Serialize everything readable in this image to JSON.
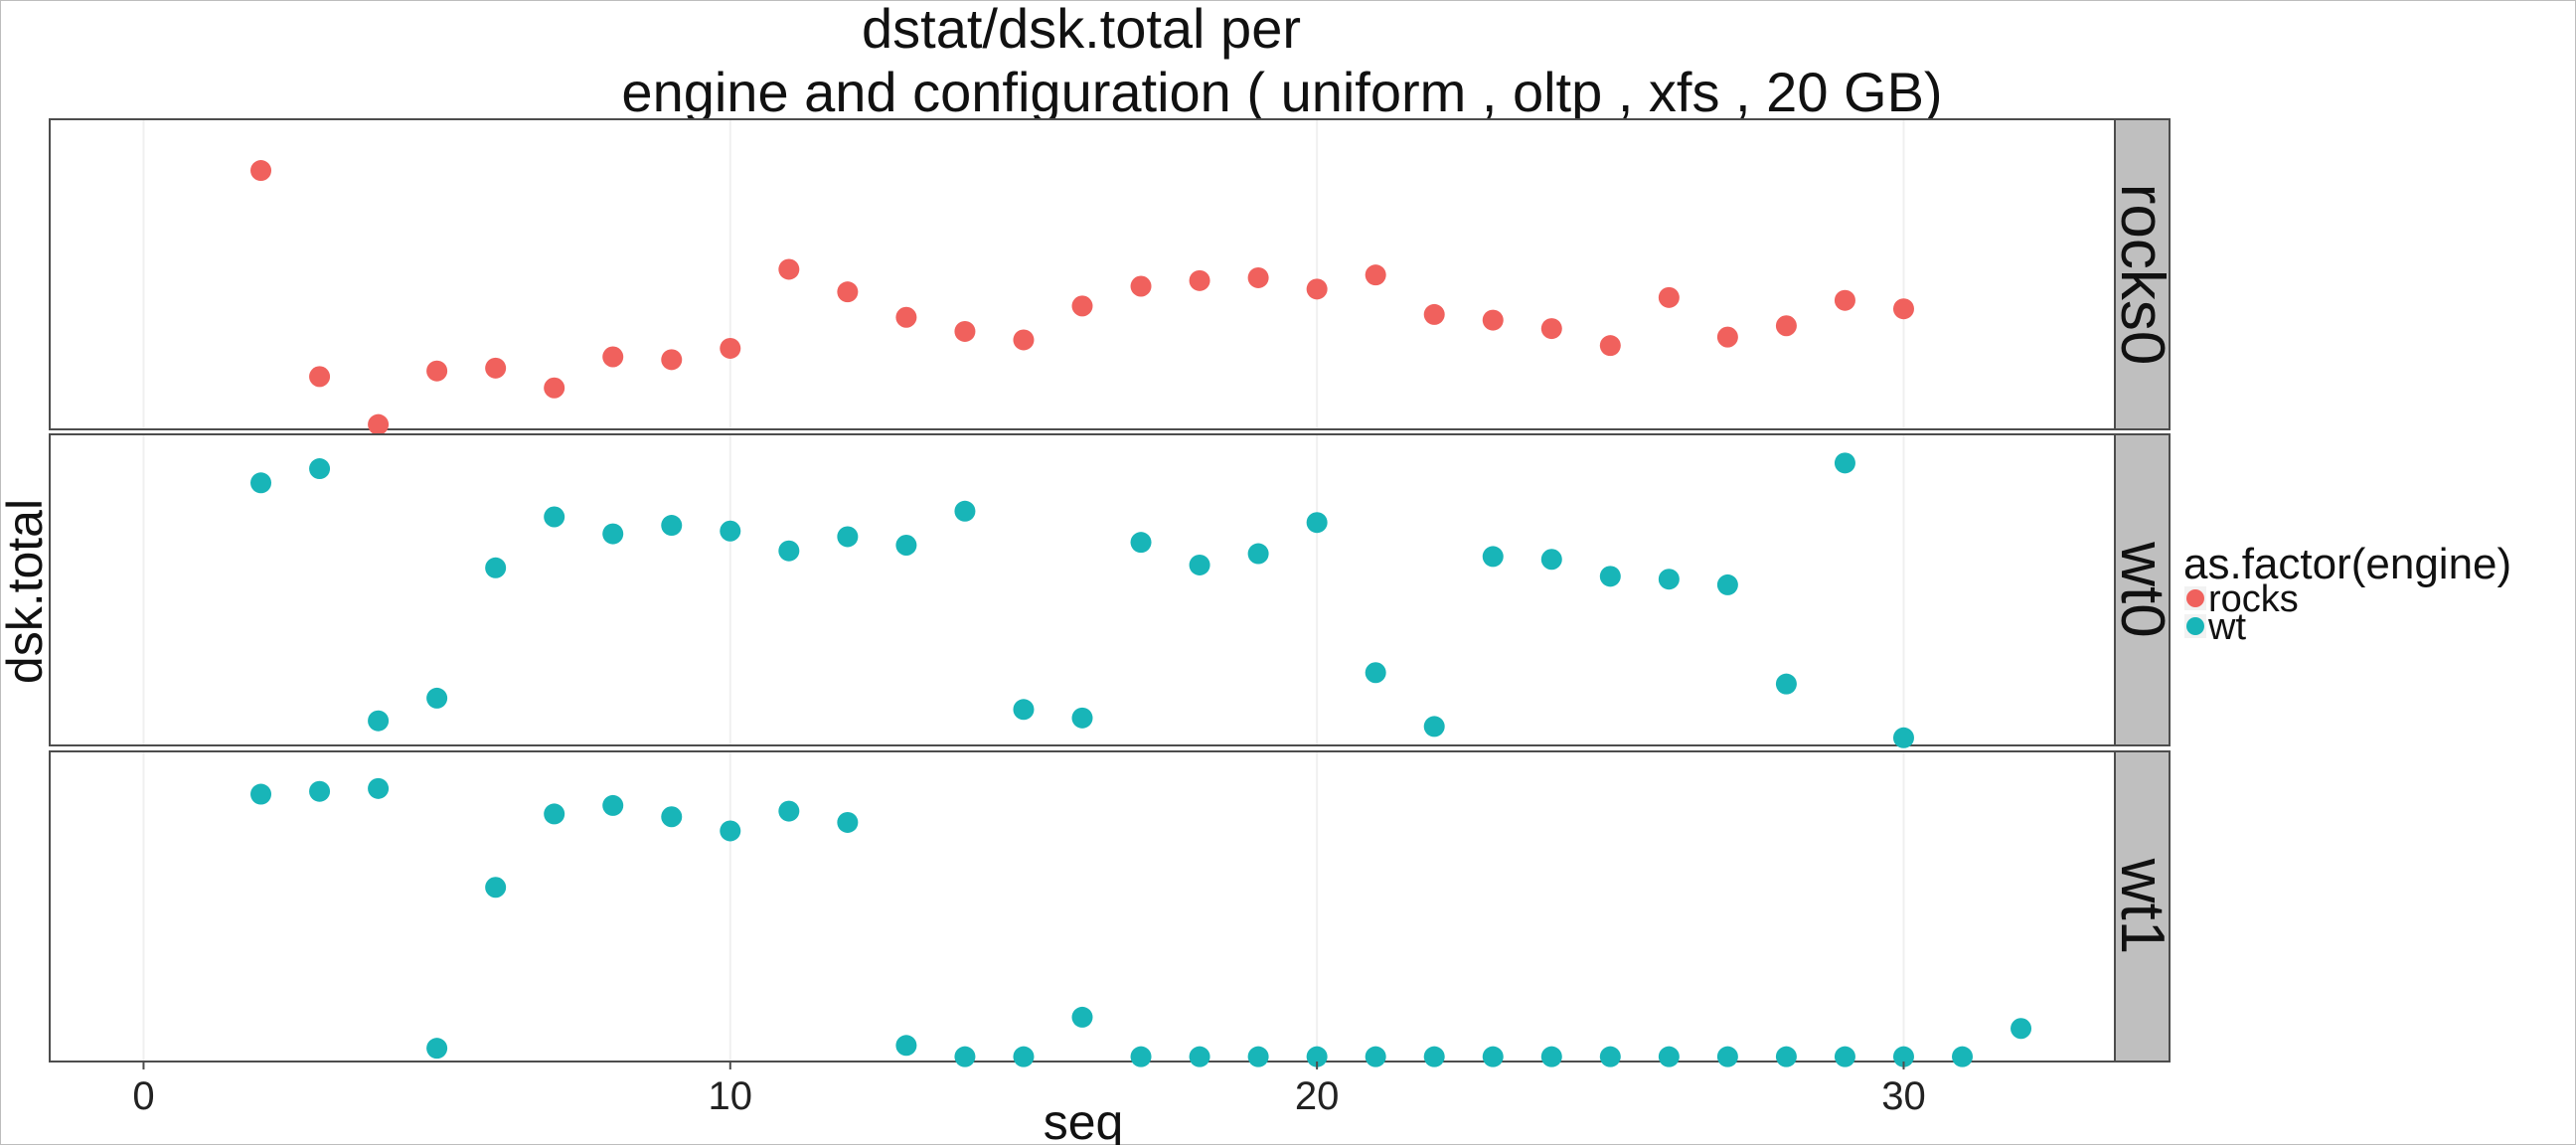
{
  "chart_data": {
    "type": "scatter",
    "title_line1": "dstat/dsk.total per",
    "title_line2": "engine and configuration ( uniform , oltp , xfs ,  20 GB)",
    "xlabel": "seq",
    "ylabel": "dsk.total",
    "xlim": [
      -1.6,
      33.6
    ],
    "x_ticks": [
      0,
      10,
      20,
      30
    ],
    "y_ticks_shown": false,
    "grid": true,
    "legend": {
      "title": "as.factor(engine)",
      "position": "right",
      "entries": [
        {
          "name": "rocks",
          "color": "#F0615D"
        },
        {
          "name": "wt",
          "color": "#18B5B8"
        }
      ]
    },
    "panels": [
      {
        "label": "rocks0",
        "series": "rocks",
        "ylim": [
          0,
          100
        ],
        "points": [
          {
            "x": 2,
            "y": 91
          },
          {
            "x": 3,
            "y": 18
          },
          {
            "x": 4,
            "y": 1
          },
          {
            "x": 5,
            "y": 20
          },
          {
            "x": 6,
            "y": 21
          },
          {
            "x": 7,
            "y": 14
          },
          {
            "x": 8,
            "y": 25
          },
          {
            "x": 9,
            "y": 24
          },
          {
            "x": 10,
            "y": 28
          },
          {
            "x": 11,
            "y": 56
          },
          {
            "x": 12,
            "y": 48
          },
          {
            "x": 13,
            "y": 39
          },
          {
            "x": 14,
            "y": 34
          },
          {
            "x": 15,
            "y": 31
          },
          {
            "x": 16,
            "y": 43
          },
          {
            "x": 17,
            "y": 50
          },
          {
            "x": 18,
            "y": 52
          },
          {
            "x": 19,
            "y": 53
          },
          {
            "x": 20,
            "y": 49
          },
          {
            "x": 21,
            "y": 54
          },
          {
            "x": 22,
            "y": 40
          },
          {
            "x": 23,
            "y": 38
          },
          {
            "x": 24,
            "y": 35
          },
          {
            "x": 25,
            "y": 29
          },
          {
            "x": 26,
            "y": 46
          },
          {
            "x": 27,
            "y": 32
          },
          {
            "x": 28,
            "y": 36
          },
          {
            "x": 29,
            "y": 45
          },
          {
            "x": 30,
            "y": 42
          }
        ]
      },
      {
        "label": "wt0",
        "series": "wt",
        "ylim": [
          0,
          100
        ],
        "points": [
          {
            "x": 2,
            "y": 92
          },
          {
            "x": 3,
            "y": 97
          },
          {
            "x": 4,
            "y": 8
          },
          {
            "x": 5,
            "y": 16
          },
          {
            "x": 6,
            "y": 62
          },
          {
            "x": 7,
            "y": 80
          },
          {
            "x": 8,
            "y": 74
          },
          {
            "x": 9,
            "y": 77
          },
          {
            "x": 10,
            "y": 75
          },
          {
            "x": 11,
            "y": 68
          },
          {
            "x": 12,
            "y": 73
          },
          {
            "x": 13,
            "y": 70
          },
          {
            "x": 14,
            "y": 82
          },
          {
            "x": 15,
            "y": 12
          },
          {
            "x": 16,
            "y": 9
          },
          {
            "x": 17,
            "y": 71
          },
          {
            "x": 18,
            "y": 63
          },
          {
            "x": 19,
            "y": 67
          },
          {
            "x": 20,
            "y": 78
          },
          {
            "x": 21,
            "y": 25
          },
          {
            "x": 22,
            "y": 6
          },
          {
            "x": 23,
            "y": 66
          },
          {
            "x": 24,
            "y": 65
          },
          {
            "x": 25,
            "y": 59
          },
          {
            "x": 26,
            "y": 58
          },
          {
            "x": 27,
            "y": 56
          },
          {
            "x": 28,
            "y": 21
          },
          {
            "x": 29,
            "y": 99
          },
          {
            "x": 30,
            "y": 2
          }
        ]
      },
      {
        "label": "wt1",
        "series": "wt",
        "ylim": [
          0,
          100
        ],
        "points": [
          {
            "x": 2,
            "y": 94
          },
          {
            "x": 3,
            "y": 95
          },
          {
            "x": 4,
            "y": 96
          },
          {
            "x": 5,
            "y": 4
          },
          {
            "x": 6,
            "y": 61
          },
          {
            "x": 7,
            "y": 87
          },
          {
            "x": 8,
            "y": 90
          },
          {
            "x": 9,
            "y": 86
          },
          {
            "x": 10,
            "y": 81
          },
          {
            "x": 11,
            "y": 88
          },
          {
            "x": 12,
            "y": 84
          },
          {
            "x": 13,
            "y": 5
          },
          {
            "x": 14,
            "y": 1
          },
          {
            "x": 15,
            "y": 1
          },
          {
            "x": 16,
            "y": 15
          },
          {
            "x": 17,
            "y": 1
          },
          {
            "x": 18,
            "y": 1
          },
          {
            "x": 19,
            "y": 1
          },
          {
            "x": 20,
            "y": 1
          },
          {
            "x": 21,
            "y": 1
          },
          {
            "x": 22,
            "y": 1
          },
          {
            "x": 23,
            "y": 1
          },
          {
            "x": 24,
            "y": 1
          },
          {
            "x": 25,
            "y": 1
          },
          {
            "x": 26,
            "y": 1
          },
          {
            "x": 27,
            "y": 1
          },
          {
            "x": 28,
            "y": 1
          },
          {
            "x": 29,
            "y": 1
          },
          {
            "x": 30,
            "y": 1
          },
          {
            "x": 31,
            "y": 1
          },
          {
            "x": 32,
            "y": 11
          }
        ]
      }
    ]
  }
}
